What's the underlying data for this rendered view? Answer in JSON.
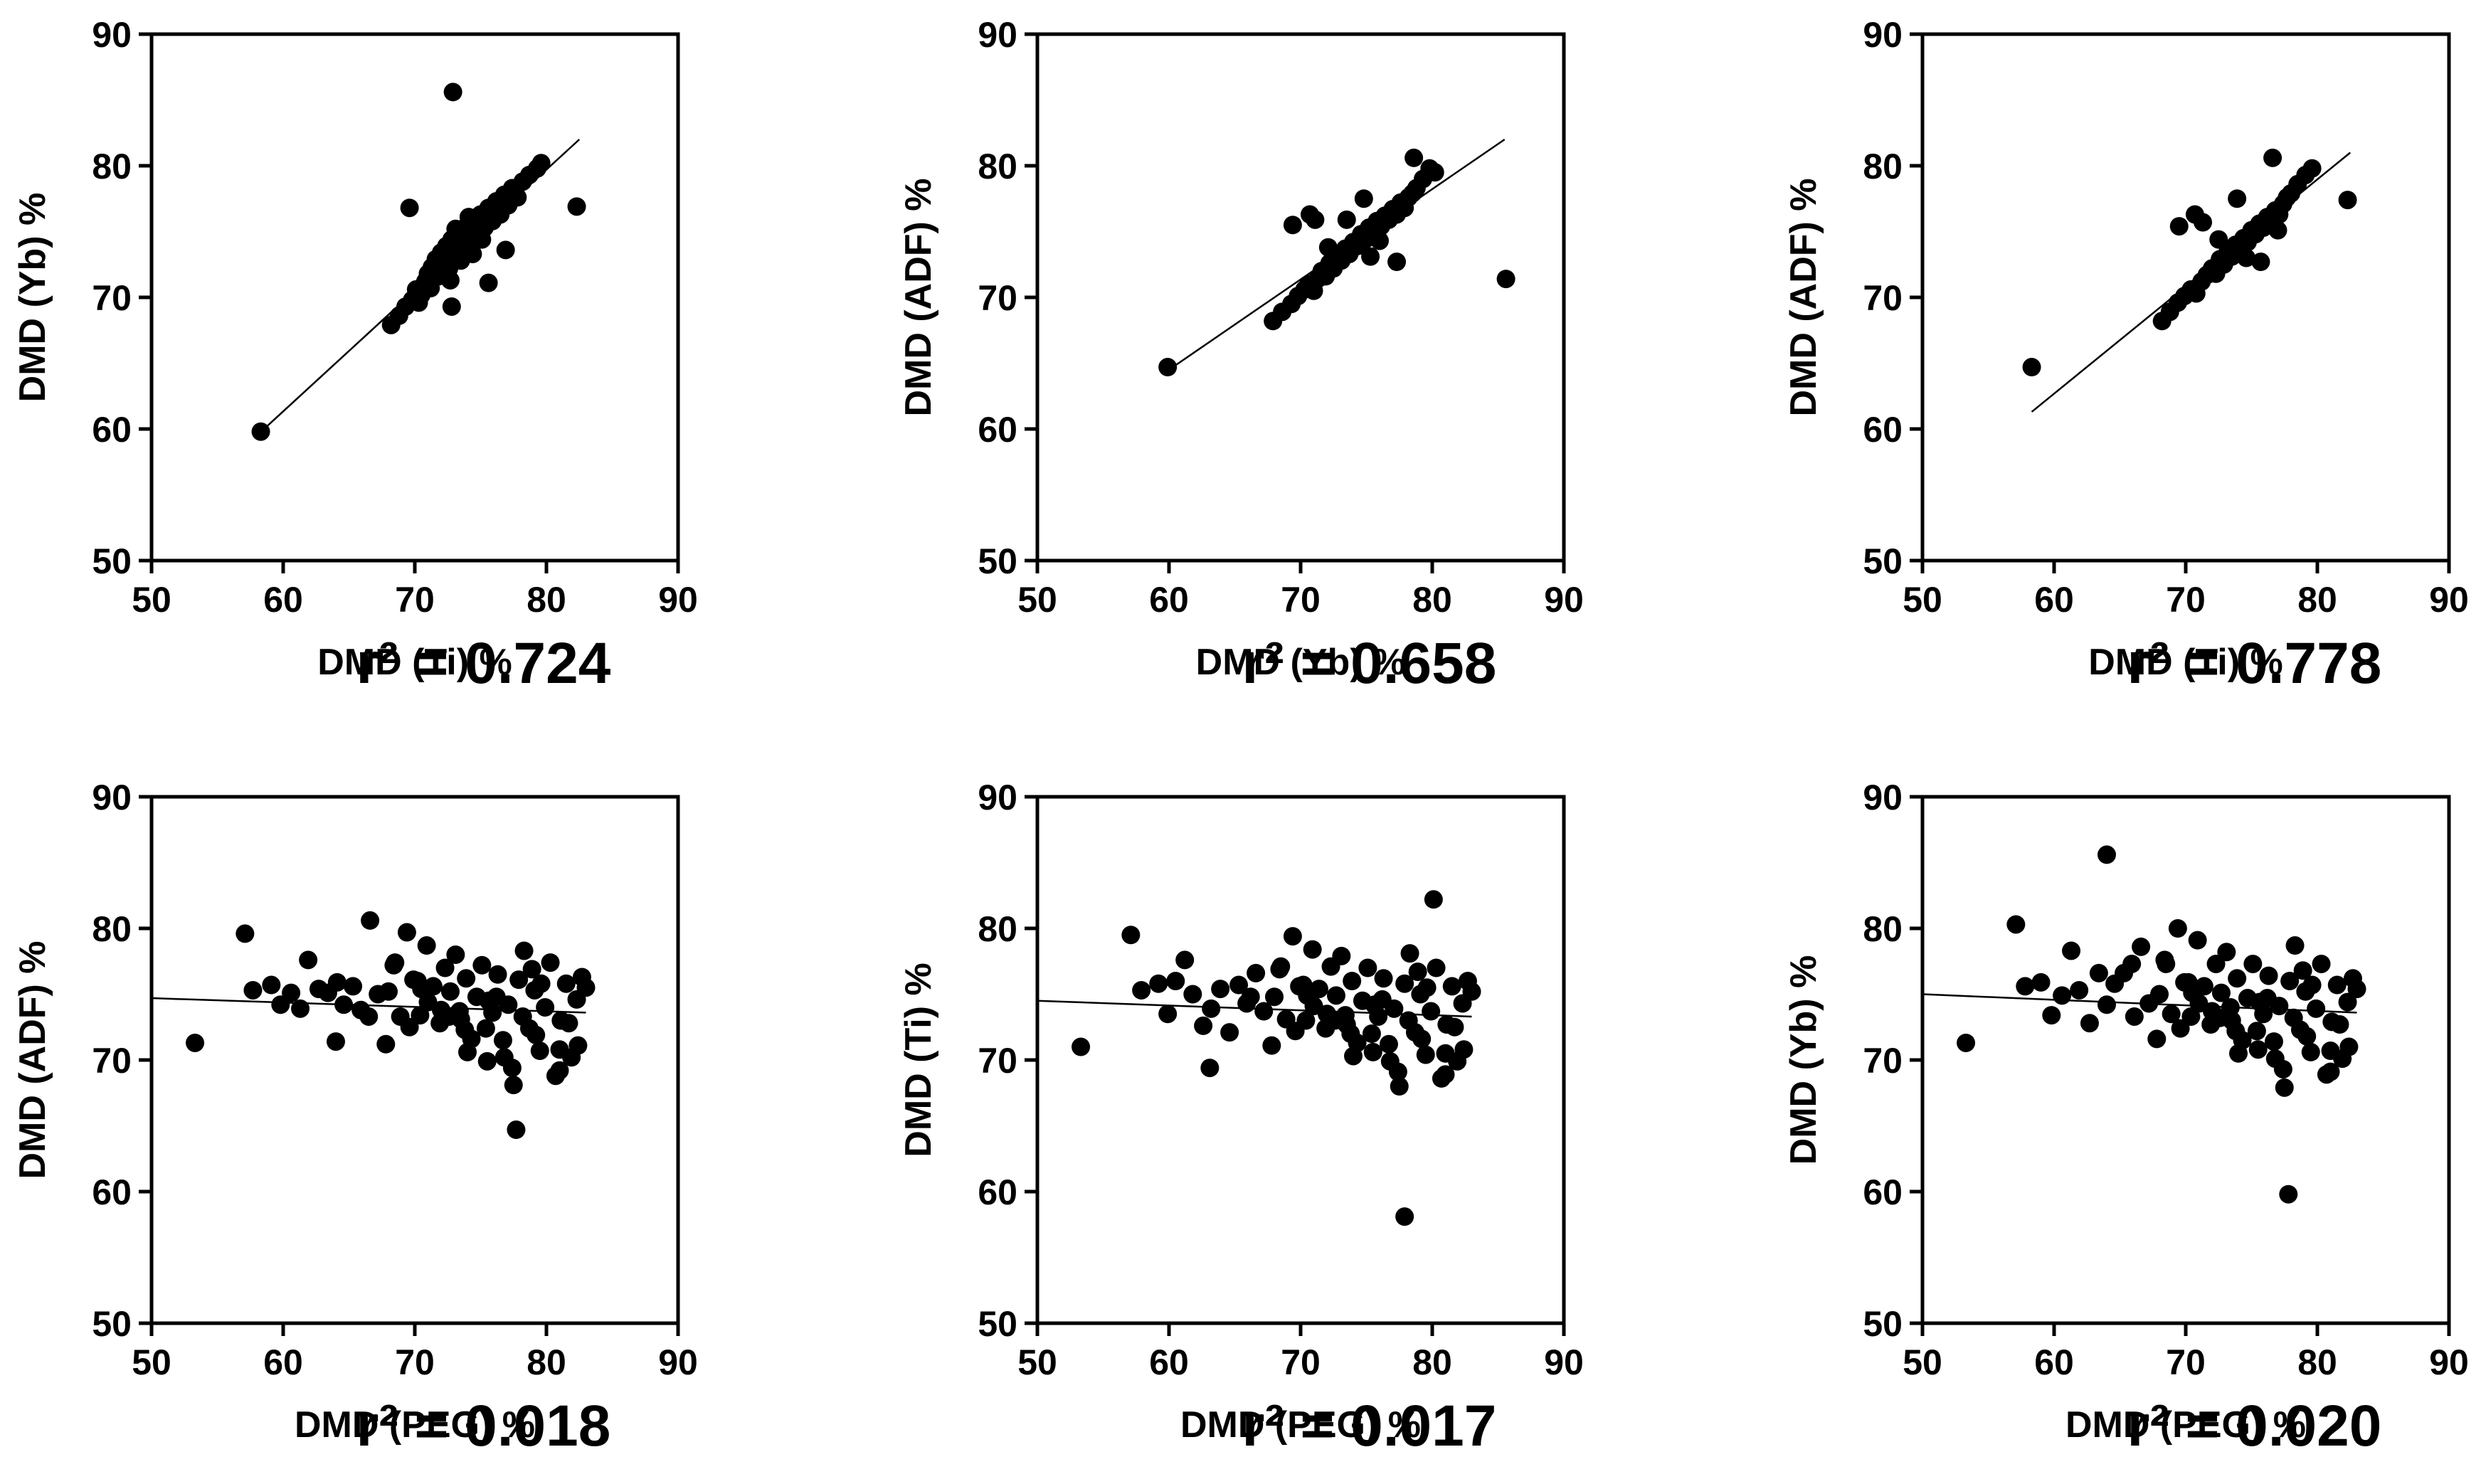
{
  "chart_data": [
    {
      "type": "scatter",
      "xlabel": "DMD (Ti) %",
      "ylabel": "DMD (Yb) %",
      "xlim": [
        50,
        90
      ],
      "ylim": [
        50,
        90
      ],
      "xticks": [
        "50",
        "60",
        "70",
        "80",
        "90"
      ],
      "yticks": [
        "50",
        "60",
        "70",
        "80",
        "90"
      ],
      "annotation": "r² = 0.724",
      "trendline": {
        "x": [
          58,
          82.5
        ],
        "y": [
          59.5,
          82
        ]
      },
      "x": [
        58.3,
        68.2,
        68.8,
        69.3,
        69.8,
        70.1,
        70.5,
        70.8,
        71.0,
        71.3,
        71.6,
        71.8,
        72.0,
        72.2,
        72.4,
        72.6,
        72.8,
        73.0,
        73.2,
        73.4,
        73.6,
        73.8,
        74.0,
        74.2,
        74.4,
        74.6,
        74.8,
        75.0,
        75.3,
        75.6,
        75.9,
        76.2,
        76.5,
        76.8,
        77.1,
        77.4,
        77.8,
        78.2,
        78.7,
        79.3,
        79.6,
        72.9,
        69.6,
        82.3,
        72.8,
        75.6,
        76.9,
        70.3,
        71.2,
        71.9,
        72.7,
        73.5,
        74.3,
        75.1,
        73.1,
        74.1
      ],
      "y": [
        59.8,
        67.9,
        68.6,
        69.3,
        69.8,
        70.6,
        70.2,
        71.2,
        71.8,
        72.3,
        72.9,
        71.6,
        73.4,
        72.7,
        73.9,
        72.2,
        74.4,
        73.1,
        74.9,
        73.6,
        75.2,
        74.1,
        74.6,
        75.6,
        73.3,
        75.9,
        74.6,
        76.3,
        75.3,
        76.8,
        75.8,
        77.3,
        76.3,
        77.8,
        77.0,
        78.3,
        77.6,
        78.8,
        79.3,
        79.8,
        80.2,
        85.6,
        76.8,
        76.9,
        69.3,
        71.1,
        73.6,
        69.6,
        70.7,
        72.1,
        71.3,
        72.8,
        73.8,
        74.4,
        75.2,
        76.1
      ]
    },
    {
      "type": "scatter",
      "xlabel": "DMD (Yb) %",
      "ylabel": "DMD (ADF) %",
      "xlim": [
        50,
        90
      ],
      "ylim": [
        50,
        90
      ],
      "xticks": [
        "50",
        "60",
        "70",
        "80",
        "90"
      ],
      "yticks": [
        "50",
        "60",
        "70",
        "80",
        "90"
      ],
      "annotation": "r² = 0.658",
      "trendline": {
        "x": [
          60,
          85.5
        ],
        "y": [
          64.5,
          82
        ]
      },
      "x": [
        59.9,
        67.9,
        68.6,
        69.3,
        69.8,
        70.3,
        70.6,
        71.0,
        71.3,
        71.6,
        71.9,
        72.2,
        72.5,
        72.8,
        73.1,
        73.4,
        73.7,
        74.0,
        74.3,
        74.6,
        74.9,
        75.2,
        75.5,
        75.8,
        76.1,
        76.4,
        76.7,
        77.0,
        77.3,
        77.6,
        77.9,
        78.2,
        78.5,
        78.8,
        79.3,
        79.8,
        80.2,
        85.6,
        69.4,
        70.7,
        71.1,
        77.3,
        78.6,
        72.1,
        73.5,
        74.8,
        76.0,
        75.3
      ],
      "y": [
        64.7,
        68.2,
        68.9,
        69.5,
        70.1,
        70.6,
        71.0,
        70.5,
        71.4,
        72.0,
        71.6,
        72.6,
        72.2,
        73.1,
        72.8,
        73.7,
        73.3,
        74.2,
        73.9,
        74.8,
        74.4,
        75.3,
        74.9,
        75.8,
        75.4,
        76.2,
        75.9,
        76.7,
        76.3,
        77.2,
        76.8,
        77.6,
        77.9,
        78.3,
        79.0,
        79.8,
        79.5,
        71.4,
        75.5,
        76.3,
        75.9,
        72.7,
        80.6,
        73.8,
        75.9,
        77.5,
        74.3,
        73.1
      ]
    },
    {
      "type": "scatter",
      "xlabel": "DMD (Ti) %",
      "ylabel": "DMD (ADF) %",
      "xlim": [
        50,
        90
      ],
      "ylim": [
        50,
        90
      ],
      "xticks": [
        "50",
        "60",
        "70",
        "80",
        "90"
      ],
      "yticks": [
        "50",
        "60",
        "70",
        "80",
        "90"
      ],
      "annotation": "r² = 0.778",
      "trendline": {
        "x": [
          58.3,
          82.5
        ],
        "y": [
          61.3,
          81
        ]
      },
      "x": [
        58.3,
        68.2,
        68.8,
        69.4,
        69.9,
        70.4,
        70.8,
        71.2,
        71.6,
        72.0,
        72.3,
        72.6,
        72.9,
        73.2,
        73.5,
        73.8,
        74.1,
        74.4,
        74.7,
        75.0,
        75.3,
        75.6,
        75.9,
        76.2,
        76.5,
        76.8,
        77.1,
        77.4,
        77.7,
        78.0,
        78.5,
        79.1,
        79.6,
        82.3,
        69.5,
        70.7,
        71.3,
        76.6,
        75.7,
        72.5,
        73.9,
        74.6,
        77.0
      ],
      "y": [
        64.7,
        68.2,
        68.9,
        69.6,
        70.1,
        70.6,
        70.3,
        71.2,
        71.7,
        72.2,
        71.8,
        72.9,
        72.5,
        73.5,
        73.1,
        74.0,
        73.7,
        74.5,
        74.2,
        75.1,
        74.8,
        75.6,
        75.3,
        76.1,
        75.8,
        76.6,
        76.3,
        77.1,
        77.6,
        77.9,
        78.6,
        79.3,
        79.8,
        77.4,
        75.4,
        76.3,
        75.7,
        80.6,
        72.7,
        74.4,
        77.5,
        73.0,
        75.1
      ]
    },
    {
      "type": "scatter",
      "xlabel": "DMD (PEG) %",
      "ylabel": "DMD (ADF) %",
      "xlim": [
        50,
        90
      ],
      "ylim": [
        50,
        90
      ],
      "xticks": [
        "50",
        "60",
        "70",
        "80",
        "90"
      ],
      "yticks": [
        "50",
        "60",
        "70",
        "80",
        "90"
      ],
      "annotation": "r² = 0.018",
      "trendline": {
        "x": [
          50,
          83
        ],
        "y": [
          74.7,
          73.6
        ]
      },
      "x": [
        53.3,
        57.1,
        57.7,
        59.1,
        59.8,
        60.6,
        61.3,
        61.9,
        62.7,
        63.4,
        64.0,
        64.6,
        65.3,
        65.9,
        66.6,
        67.2,
        67.8,
        68.4,
        68.9,
        69.4,
        69.9,
        70.4,
        70.9,
        71.4,
        71.9,
        72.3,
        72.7,
        73.1,
        73.5,
        73.9,
        74.3,
        74.7,
        75.1,
        75.5,
        75.9,
        76.3,
        76.7,
        77.1,
        77.5,
        77.9,
        78.3,
        78.7,
        79.1,
        79.5,
        79.9,
        80.3,
        80.7,
        81.1,
        81.5,
        81.9,
        82.3,
        82.7,
        83.0,
        68.0,
        69.6,
        71.0,
        72.6,
        74.0,
        75.4,
        76.8,
        78.2,
        79.6,
        81.0,
        82.4,
        68.5,
        70.2,
        72.0,
        73.8,
        75.6,
        77.4,
        79.2,
        81.0,
        66.5,
        64.1,
        77.7,
        70.5,
        73.4,
        76.2,
        78.9,
        81.7
      ],
      "y": [
        71.3,
        79.6,
        75.3,
        75.7,
        74.2,
        75.1,
        73.9,
        77.6,
        75.4,
        75.1,
        71.4,
        74.2,
        75.6,
        73.8,
        80.6,
        75.0,
        71.2,
        77.2,
        73.3,
        79.7,
        76.1,
        73.4,
        78.7,
        75.6,
        72.8,
        77.0,
        75.2,
        78.0,
        73.1,
        76.2,
        71.6,
        74.8,
        77.2,
        69.9,
        73.6,
        76.5,
        71.5,
        74.2,
        68.1,
        76.1,
        78.3,
        72.4,
        75.3,
        70.7,
        74.0,
        77.4,
        68.8,
        73.0,
        75.8,
        70.2,
        74.6,
        76.3,
        75.5,
        75.2,
        72.5,
        74.4,
        73.3,
        70.6,
        72.4,
        70.2,
        73.3,
        75.8,
        70.8,
        71.1,
        77.4,
        76.0,
        73.8,
        72.3,
        74.5,
        69.4,
        71.9,
        69.2,
        73.3,
        75.9,
        64.7,
        75.4,
        73.7,
        74.8,
        76.9,
        72.8
      ]
    },
    {
      "type": "scatter",
      "xlabel": "DMD (PEG) %",
      "ylabel": "DMD (Ti) %",
      "xlim": [
        50,
        90
      ],
      "ylim": [
        50,
        90
      ],
      "xticks": [
        "50",
        "60",
        "70",
        "80",
        "90"
      ],
      "yticks": [
        "50",
        "60",
        "70",
        "80",
        "90"
      ],
      "annotation": "r² = 0.017",
      "trendline": {
        "x": [
          50,
          83
        ],
        "y": [
          74.5,
          73.3
        ]
      },
      "x": [
        53.3,
        57.1,
        57.9,
        59.2,
        59.9,
        60.5,
        61.2,
        61.8,
        62.6,
        63.2,
        63.9,
        64.6,
        65.3,
        65.9,
        66.6,
        67.2,
        67.8,
        68.4,
        68.9,
        69.4,
        69.9,
        70.4,
        70.9,
        71.4,
        71.9,
        72.3,
        72.7,
        73.1,
        73.5,
        73.9,
        74.3,
        74.7,
        75.1,
        75.5,
        75.9,
        76.3,
        76.7,
        77.1,
        77.5,
        77.9,
        78.3,
        78.7,
        79.1,
        79.5,
        79.9,
        80.3,
        80.7,
        81.1,
        81.5,
        81.9,
        82.3,
        82.7,
        83.0,
        68.0,
        69.6,
        71.0,
        72.6,
        74.0,
        75.4,
        76.8,
        78.2,
        79.6,
        81.0,
        82.4,
        68.5,
        70.2,
        72.0,
        73.8,
        75.6,
        77.4,
        79.2,
        81.0,
        80.1,
        77.9,
        63.1,
        66.2,
        70.5,
        73.4,
        76.2,
        78.9,
        81.7
      ],
      "y": [
        71.0,
        79.5,
        75.3,
        75.8,
        73.5,
        76.0,
        77.6,
        75.0,
        72.6,
        73.9,
        75.4,
        72.1,
        75.7,
        74.3,
        76.6,
        73.7,
        71.1,
        76.9,
        73.1,
        79.4,
        75.6,
        73.0,
        78.4,
        75.4,
        72.4,
        77.1,
        74.9,
        77.9,
        72.7,
        76.0,
        71.3,
        74.5,
        77.0,
        70.6,
        73.3,
        76.2,
        71.2,
        73.9,
        68.0,
        75.8,
        78.1,
        72.1,
        75.0,
        70.4,
        73.7,
        77.0,
        68.6,
        72.7,
        75.6,
        69.9,
        74.3,
        76.0,
        75.2,
        74.8,
        72.2,
        74.1,
        73.0,
        70.3,
        72.0,
        69.9,
        73.0,
        75.5,
        70.5,
        70.8,
        77.1,
        75.7,
        73.5,
        72.0,
        74.2,
        69.1,
        71.6,
        68.9,
        82.2,
        58.1,
        69.4,
        74.8,
        74.9,
        73.4,
        74.6,
        76.7,
        72.5
      ]
    },
    {
      "type": "scatter",
      "xlabel": "DMD (PEG) %",
      "ylabel": "DMD (Yb) %",
      "xlim": [
        50,
        90
      ],
      "ylim": [
        50,
        90
      ],
      "xticks": [
        "50",
        "60",
        "70",
        "80",
        "90"
      ],
      "yticks": [
        "50",
        "60",
        "70",
        "80",
        "90"
      ],
      "annotation": "r² = 0.020",
      "trendline": {
        "x": [
          50,
          83
        ],
        "y": [
          75.0,
          73.6
        ]
      },
      "x": [
        53.3,
        57.1,
        57.8,
        59.0,
        59.8,
        60.6,
        61.3,
        61.9,
        62.7,
        63.4,
        64.0,
        64.6,
        65.3,
        65.9,
        66.6,
        67.2,
        67.8,
        68.4,
        68.9,
        69.4,
        69.9,
        70.4,
        70.9,
        71.4,
        71.9,
        72.3,
        72.7,
        73.1,
        73.5,
        73.9,
        74.3,
        74.7,
        75.1,
        75.5,
        75.9,
        76.3,
        76.7,
        77.1,
        77.5,
        77.9,
        78.3,
        78.7,
        79.1,
        79.5,
        79.9,
        80.3,
        80.7,
        81.1,
        81.5,
        81.9,
        82.3,
        82.7,
        83.0,
        68.0,
        69.6,
        71.0,
        72.6,
        74.0,
        75.4,
        76.8,
        78.2,
        79.6,
        81.0,
        82.4,
        68.5,
        70.2,
        72.0,
        73.8,
        75.6,
        77.4,
        79.2,
        81.0,
        64.0,
        77.8,
        66.1,
        70.5,
        73.4,
        76.2,
        78.9,
        81.7
      ],
      "y": [
        71.3,
        80.3,
        75.6,
        75.9,
        73.4,
        74.9,
        78.3,
        75.3,
        72.8,
        76.6,
        74.2,
        75.8,
        76.6,
        77.3,
        78.6,
        74.3,
        71.6,
        77.6,
        73.5,
        80.0,
        75.9,
        73.3,
        79.1,
        75.6,
        72.7,
        77.3,
        75.1,
        78.2,
        73.0,
        76.2,
        71.5,
        74.7,
        77.3,
        70.8,
        73.5,
        76.4,
        71.4,
        74.1,
        67.9,
        76.0,
        78.7,
        72.3,
        75.2,
        70.6,
        73.9,
        77.3,
        68.9,
        72.9,
        75.7,
        70.1,
        74.4,
        76.2,
        75.4,
        75.0,
        72.4,
        74.3,
        73.2,
        70.5,
        72.2,
        70.1,
        73.2,
        75.7,
        70.7,
        71.0,
        77.3,
        75.9,
        73.7,
        72.2,
        74.4,
        69.3,
        71.8,
        69.1,
        85.6,
        59.8,
        73.3,
        75.1,
        74.0,
        74.7,
        76.8,
        72.7
      ]
    }
  ]
}
